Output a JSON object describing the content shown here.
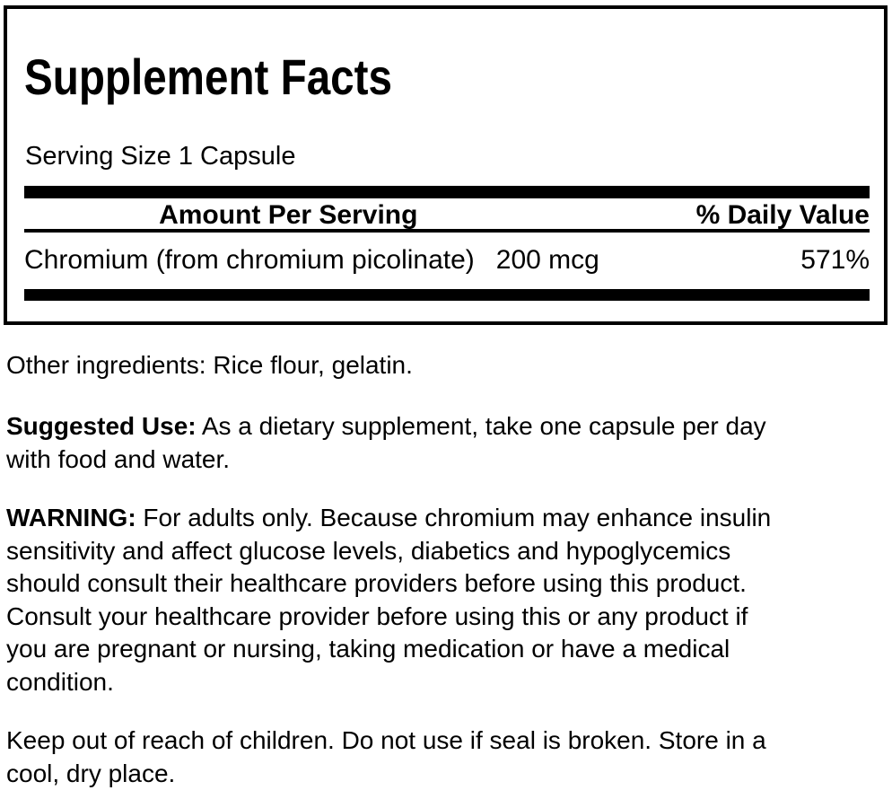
{
  "panel": {
    "title": "Supplement Facts",
    "serving_size": "Serving Size 1 Capsule",
    "table": {
      "amount_header": "Amount Per Serving",
      "daily_value_header": "% Daily Value",
      "rows": [
        {
          "name": "Chromium (from chromium picolinate)",
          "amount": "200 mcg",
          "daily_value": "571%"
        }
      ]
    }
  },
  "paragraphs": {
    "other_ingredients": "Other ingredients: Rice flour, gelatin.",
    "suggested_use": {
      "label": "Suggested Use:",
      "text": " As a dietary supplement, take one capsule per day\nwith food and water."
    },
    "warning": {
      "label": "WARNING:",
      "text": " For adults only. Because chromium may enhance insulin\nsensitivity and affect glucose levels, diabetics and hypoglycemics\nshould consult their healthcare providers before using this product.\nConsult your healthcare provider before using this or any product if\nyou are pregnant or nursing, taking medication or have a medical\ncondition."
    },
    "storage": "Keep out of reach of children. Do not use if seal is broken. Store in a\ncool, dry place."
  },
  "colors": {
    "text": "#000000",
    "background": "#ffffff",
    "rule": "#000000"
  }
}
